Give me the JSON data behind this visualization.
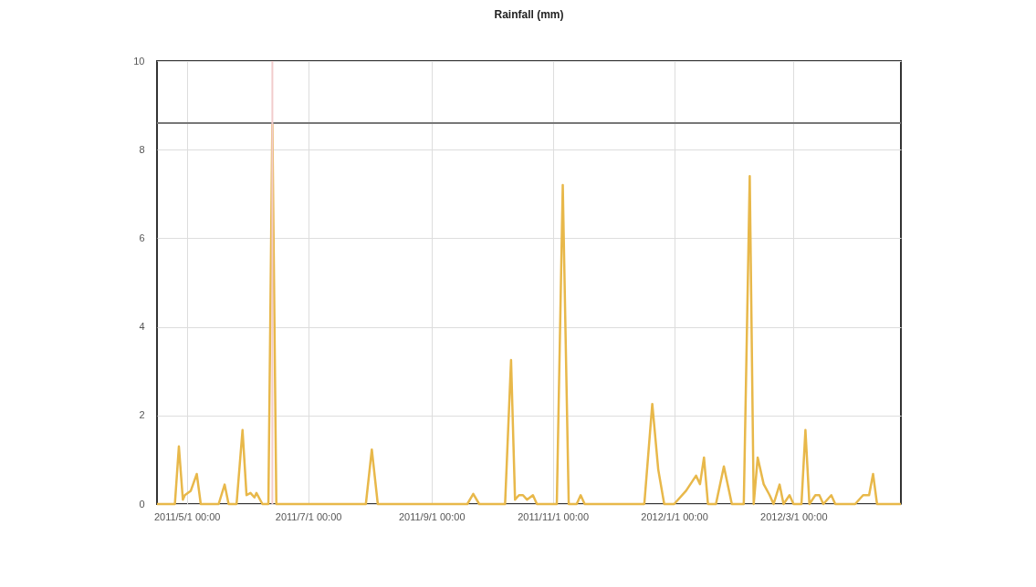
{
  "chart_data": {
    "type": "line",
    "title": "Rainfall (mm)",
    "x": [
      "2011-04-16",
      "2011-04-25",
      "2011-04-27",
      "2011-04-29",
      "2011-04-30",
      "2011-05-03",
      "2011-05-06",
      "2011-05-08",
      "2011-05-17",
      "2011-05-20",
      "2011-05-22",
      "2011-05-26",
      "2011-05-29",
      "2011-05-31",
      "2011-06-02",
      "2011-06-04",
      "2011-06-05",
      "2011-06-08",
      "2011-06-11",
      "2011-06-13",
      "2011-06-15",
      "2011-07-30",
      "2011-08-02",
      "2011-08-05",
      "2011-09-19",
      "2011-09-22",
      "2011-09-25",
      "2011-10-08",
      "2011-10-11",
      "2011-10-13",
      "2011-10-15",
      "2011-10-17",
      "2011-10-19",
      "2011-10-22",
      "2011-10-24",
      "2011-11-03",
      "2011-11-06",
      "2011-11-09",
      "2011-11-13",
      "2011-11-15",
      "2011-11-17",
      "2011-12-17",
      "2011-12-21",
      "2011-12-24",
      "2011-12-27",
      "2012-01-01",
      "2012-01-07",
      "2012-01-12",
      "2012-01-14",
      "2012-01-16",
      "2012-01-18",
      "2012-01-22",
      "2012-01-26",
      "2012-01-30",
      "2012-02-05",
      "2012-02-08",
      "2012-02-10",
      "2012-02-12",
      "2012-02-15",
      "2012-02-18",
      "2012-02-20",
      "2012-02-23",
      "2012-02-25",
      "2012-02-28",
      "2012-03-01",
      "2012-03-05",
      "2012-03-07",
      "2012-03-09",
      "2012-03-12",
      "2012-03-14",
      "2012-03-16",
      "2012-03-20",
      "2012-03-22",
      "2012-04-01",
      "2012-04-05",
      "2012-04-08",
      "2012-04-10",
      "2012-04-12",
      "2012-04-24"
    ],
    "series": [
      {
        "color": "#e8b84a",
        "values": [
          0,
          0,
          1.3,
          0.1,
          0.2,
          0.3,
          0.68,
          0,
          0,
          0.44,
          0,
          0,
          1.67,
          0.2,
          0.25,
          0.15,
          0.25,
          0,
          0,
          8.6,
          0,
          0,
          1.23,
          0,
          0,
          0.23,
          0,
          0,
          3.25,
          0.1,
          0.2,
          0.2,
          0.1,
          0.2,
          0,
          0,
          7.2,
          0,
          0,
          0.2,
          0,
          0,
          2.26,
          0.78,
          0,
          0,
          0.3,
          0.64,
          0.45,
          1.05,
          0,
          0,
          0.85,
          0,
          0,
          7.4,
          0,
          1.05,
          0.45,
          0.2,
          0,
          0.44,
          0,
          0.2,
          0,
          0,
          1.67,
          0,
          0.2,
          0.2,
          0,
          0.2,
          0,
          0,
          0.2,
          0.2,
          0.68,
          0,
          0
        ]
      }
    ],
    "xlim": [
      "2011-04-16",
      "2012-04-24"
    ],
    "xticks": [
      {
        "value": "2011-05-01",
        "label": "2011/5/1 00:00"
      },
      {
        "value": "2011-07-01",
        "label": "2011/7/1 00:00"
      },
      {
        "value": "2011-09-01",
        "label": "2011/9/1 00:00"
      },
      {
        "value": "2011-11-01",
        "label": "2011/11/1 00:00"
      },
      {
        "value": "2012-01-01",
        "label": "2012/1/1 00:00"
      },
      {
        "value": "2012-03-01",
        "label": "2012/3/1 00:00"
      }
    ],
    "ylim": [
      0,
      10
    ],
    "yticks": [
      0,
      2,
      4,
      6,
      8,
      10
    ],
    "grid": true,
    "line_style": "solid",
    "marker": "none",
    "ref_lines": [
      {
        "axis": "y",
        "value": 8.6,
        "color": "#777777"
      },
      {
        "axis": "x",
        "value": "2011-06-13",
        "color": "#f2cccc"
      }
    ]
  }
}
